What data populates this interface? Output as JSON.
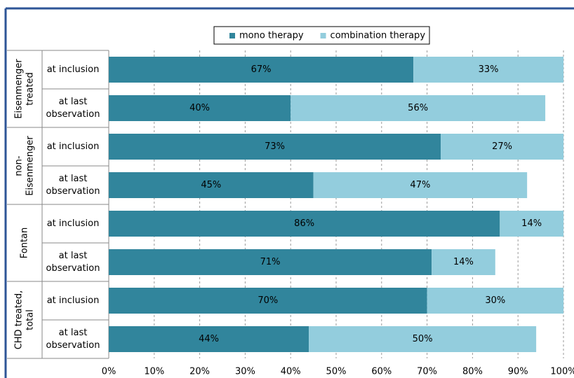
{
  "chart_data": {
    "type": "stacked-bar-horizontal",
    "groups": [
      {
        "lines": [
          "Eisenmenger",
          "treated"
        ],
        "rows": [
          0,
          1
        ]
      },
      {
        "lines": [
          "non-",
          "Eisenmenger"
        ],
        "rows": [
          2,
          3
        ]
      },
      {
        "lines": [
          "Fontan"
        ],
        "rows": [
          4,
          5
        ]
      },
      {
        "lines": [
          "CHD treated,",
          "total"
        ],
        "rows": [
          6,
          7
        ]
      }
    ],
    "categories": [
      [
        "at inclusion"
      ],
      [
        "at last",
        "observation"
      ],
      [
        "at inclusion"
      ],
      [
        "at last",
        "observation"
      ],
      [
        "at inclusion"
      ],
      [
        "at last",
        "observation"
      ],
      [
        "at inclusion"
      ],
      [
        "at last",
        "observation"
      ]
    ],
    "series": [
      {
        "name": "mono therapy",
        "color": "#31859c",
        "values": [
          67,
          40,
          73,
          45,
          86,
          71,
          70,
          44
        ],
        "value_labels": [
          "67%",
          "40%",
          "73%",
          "45%",
          "86%",
          "71%",
          "70%",
          "44%"
        ]
      },
      {
        "name": "combination therapy",
        "color": "#93cddd",
        "values": [
          33,
          56,
          27,
          47,
          14,
          14,
          30,
          50
        ],
        "value_labels": [
          "33%",
          "56%",
          "27%",
          "47%",
          "14%",
          "14%",
          "30%",
          "50%"
        ]
      }
    ],
    "xlim": [
      0,
      100
    ],
    "xticks": [
      {
        "value": 0,
        "label": "0%"
      },
      {
        "value": 10,
        "label": "10%"
      },
      {
        "value": 20,
        "label": "20%"
      },
      {
        "value": 30,
        "label": "30%"
      },
      {
        "value": 40,
        "label": "40%"
      },
      {
        "value": 50,
        "label": "50%"
      },
      {
        "value": 60,
        "label": "60%"
      },
      {
        "value": 70,
        "label": "70%"
      },
      {
        "value": 80,
        "label": "80%"
      },
      {
        "value": 90,
        "label": "90%"
      },
      {
        "value": 100,
        "label": "100%"
      }
    ],
    "grid": true
  }
}
